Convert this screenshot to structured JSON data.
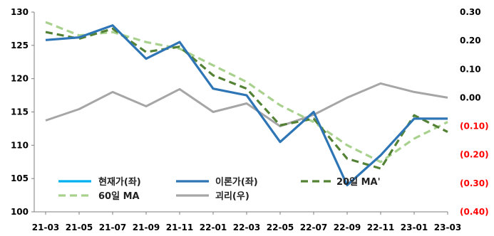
{
  "chart_data": {
    "type": "line",
    "x": [
      "21-03",
      "21-05",
      "21-07",
      "21-09",
      "21-11",
      "22-01",
      "22-03",
      "22-05",
      "22-07",
      "22-09",
      "22-11",
      "23-01",
      "23-03"
    ],
    "ylim": [
      100,
      130
    ],
    "yticks": [
      100,
      105,
      110,
      115,
      120,
      125,
      130
    ],
    "y2lim": [
      -0.4,
      0.3
    ],
    "y2ticks": [
      "(0.40)",
      "(0.30)",
      "(0.20)",
      "(0.10)",
      "0.00",
      "0.10",
      "0.20",
      "0.30"
    ],
    "y2_negative_color": "#ff0000",
    "legend_placement": "bottom-left",
    "series": [
      {
        "name": "현재가(좌)",
        "axis": "left",
        "color": "#00b0f0",
        "style": "solid",
        "values": [
          125.8,
          126.2,
          128.0,
          123.0,
          125.5,
          118.5,
          117.5,
          110.5,
          115.0,
          104.0,
          108.5,
          114.0,
          114.0
        ]
      },
      {
        "name": "이론가(좌)",
        "axis": "left",
        "color": "#2e75b6",
        "style": "solid",
        "values": [
          125.8,
          126.2,
          128.0,
          123.0,
          125.5,
          118.5,
          117.5,
          110.5,
          115.0,
          104.0,
          108.5,
          114.0,
          114.0
        ]
      },
      {
        "name": "20일 MA'",
        "axis": "left",
        "color": "#548235",
        "style": "dashed",
        "values": [
          127.0,
          126.0,
          127.5,
          124.0,
          124.8,
          120.5,
          118.5,
          113.0,
          114.0,
          108.0,
          106.5,
          114.5,
          112.0
        ]
      },
      {
        "name": "60일 MA",
        "axis": "left",
        "color": "#a9d18e",
        "style": "dashed",
        "values": [
          128.5,
          126.5,
          127.0,
          125.5,
          124.5,
          122.0,
          119.5,
          116.0,
          113.5,
          110.0,
          107.5,
          111.0,
          113.5
        ]
      },
      {
        "name": "괴리(우)",
        "axis": "right",
        "color": "#a6a6a6",
        "style": "solid",
        "values": [
          -0.08,
          -0.04,
          0.02,
          -0.03,
          0.03,
          -0.05,
          -0.02,
          -0.1,
          -0.06,
          0.0,
          0.05,
          0.02,
          0.0
        ]
      }
    ]
  }
}
